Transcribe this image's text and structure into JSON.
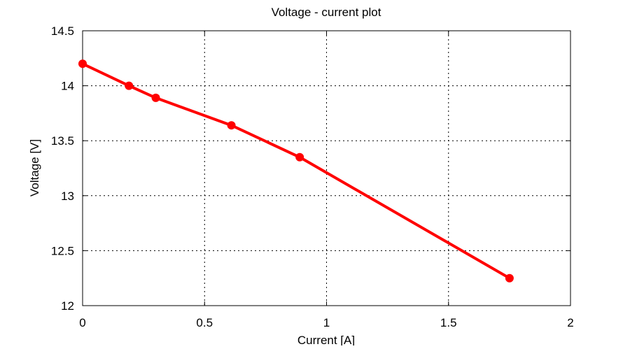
{
  "chart_data": {
    "type": "line",
    "title": "Voltage - current plot",
    "xlabel": "Current [A]",
    "ylabel": "Voltage [V]",
    "xlim": [
      0,
      2
    ],
    "ylim": [
      12,
      14.5
    ],
    "x_ticks": [
      0,
      0.5,
      1,
      1.5,
      2
    ],
    "x_tick_labels": [
      "0",
      "0.5",
      "1",
      "1.5",
      "2"
    ],
    "y_ticks": [
      12,
      12.5,
      13,
      13.5,
      14,
      14.5
    ],
    "y_tick_labels": [
      "12",
      "12.5",
      "13",
      "13.5",
      "14",
      "14.5"
    ],
    "grid": true,
    "series": [
      {
        "name": "Voltage",
        "color": "#ff0000",
        "x": [
          0,
          0.19,
          0.3,
          0.61,
          0.89,
          1.75
        ],
        "y": [
          14.2,
          14.0,
          13.89,
          13.64,
          13.35,
          12.25
        ]
      }
    ]
  }
}
